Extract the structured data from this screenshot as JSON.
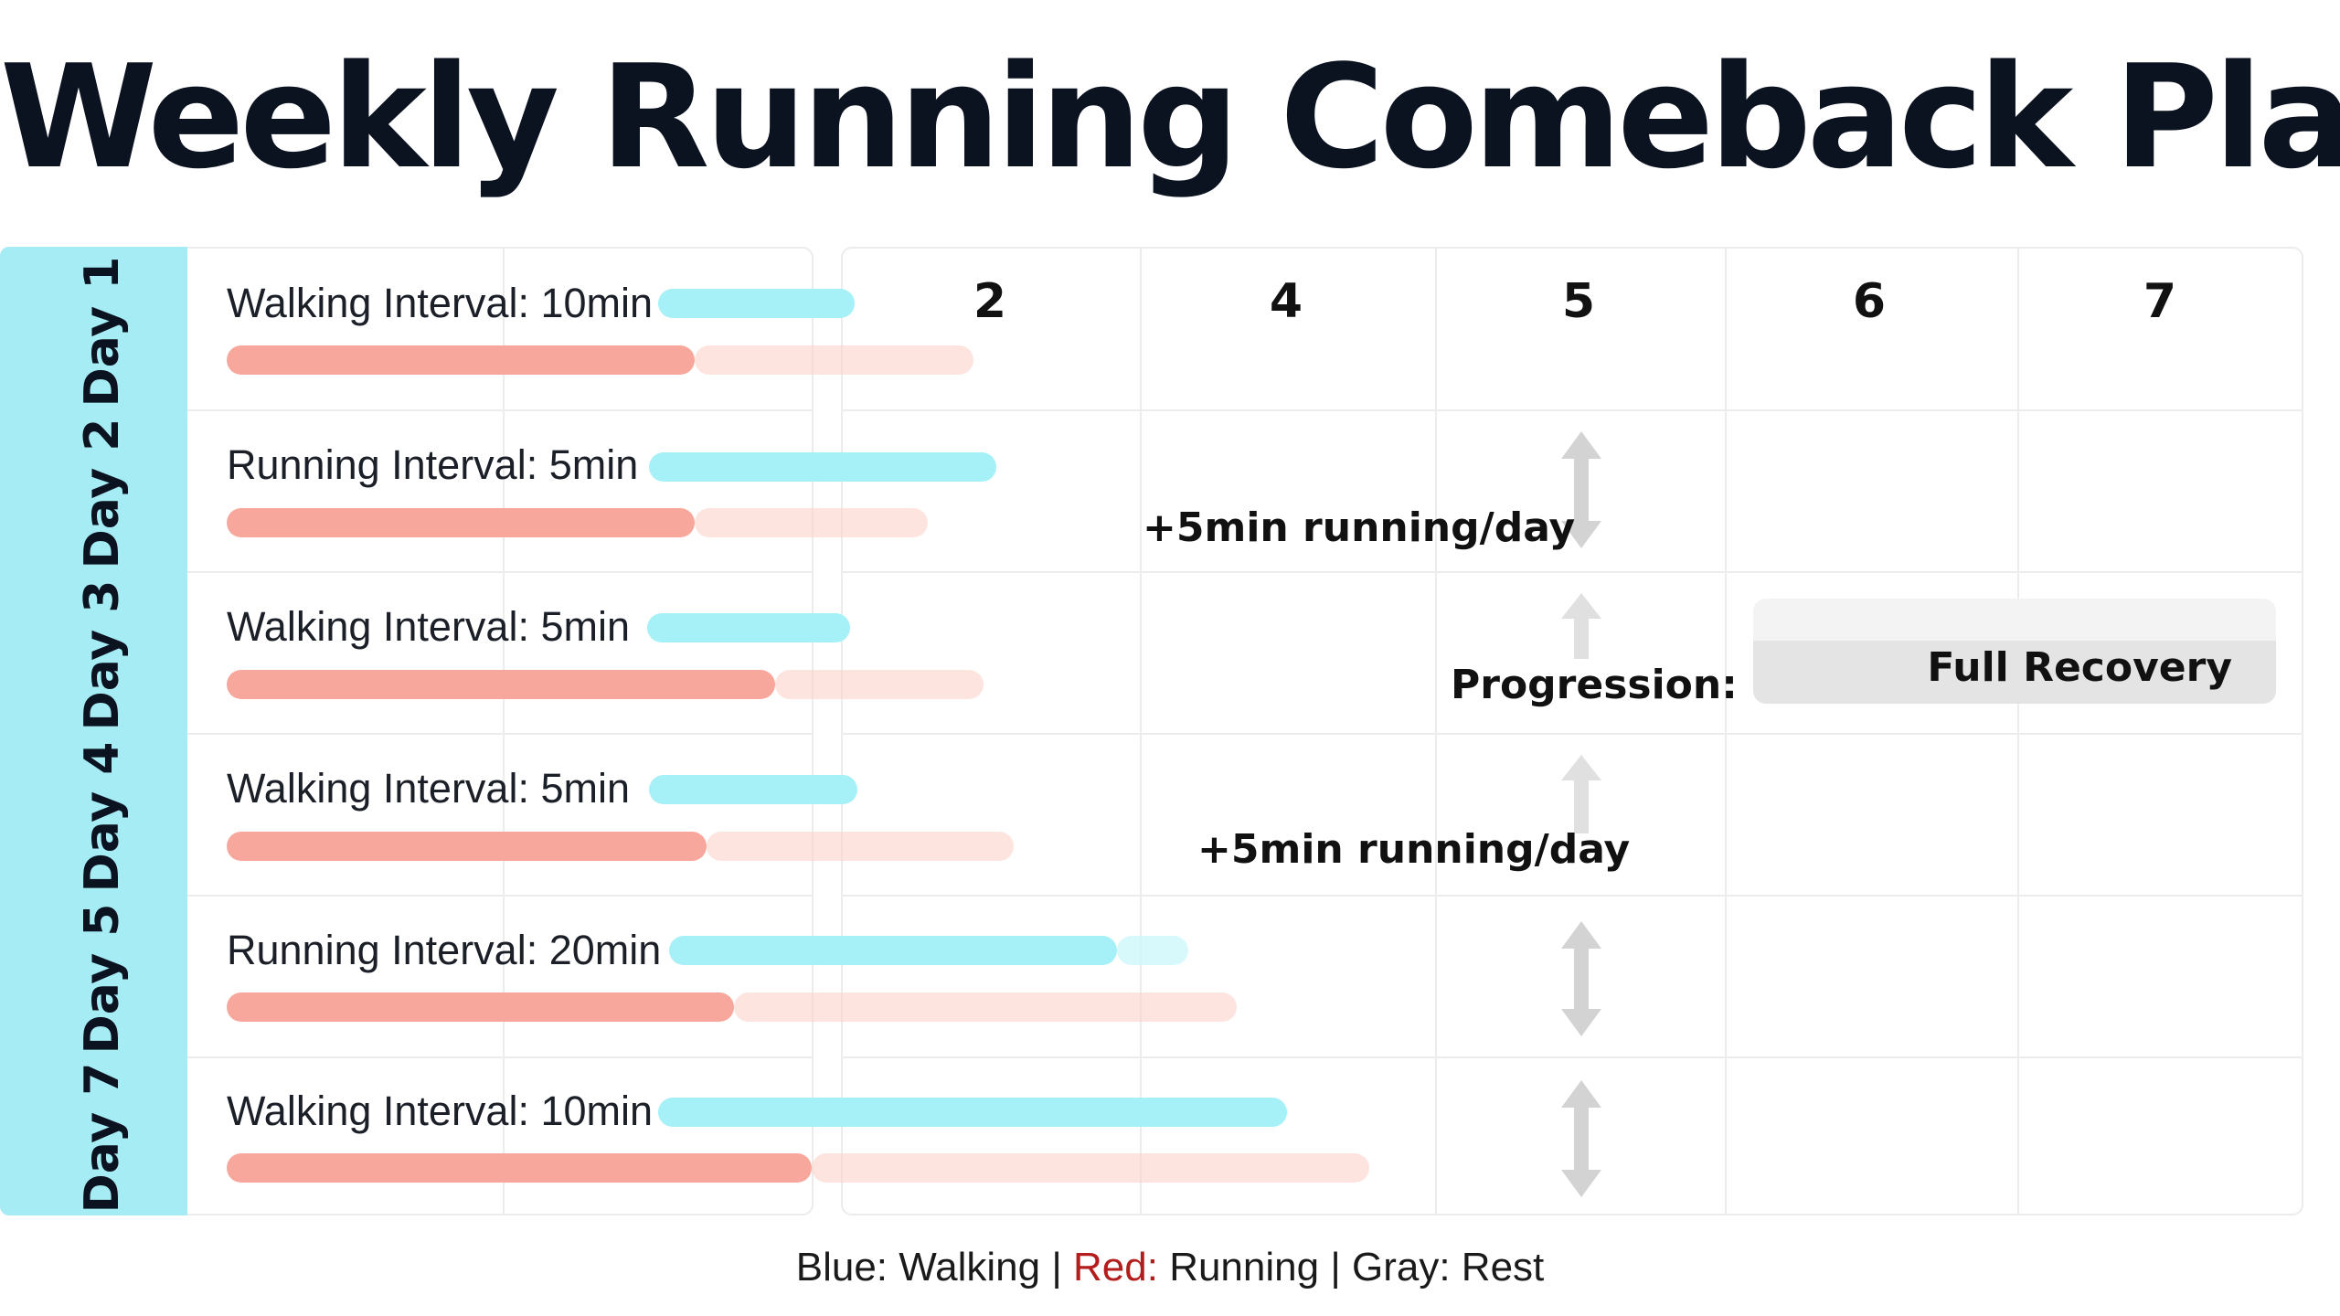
{
  "title": "Weekly Running Comeback Plan",
  "chart_data": {
    "type": "bar",
    "rows": [
      {
        "day": "Day 1",
        "label": "Walking Interval: 10min"
      },
      {
        "day": "Day 2",
        "label": "Running Interval: 5min"
      },
      {
        "day": "Day 3",
        "label": "Walking Interval: 5min"
      },
      {
        "day": "Day 4",
        "label": "Walking Interval: 5min"
      },
      {
        "day": "Day 5",
        "label": "Running Interval: 20min"
      },
      {
        "day": "Day 7",
        "label": "Walking Interval: 10min"
      }
    ],
    "columns": [
      "2",
      "4",
      "5",
      "6",
      "7"
    ],
    "annotations": {
      "running_1": "+5min running/day",
      "progression": "Progression:",
      "running_2": "+5min running/day",
      "recovery": "Full Recovery"
    },
    "legend": {
      "blue": "Blue: Walking",
      "sep1": "|",
      "red_key": "Red:",
      "red_val": "Running",
      "sep2": "|",
      "gray": "Gray: Rest"
    },
    "colors": {
      "walking": "#a6f0f7",
      "running": "#f7a79b",
      "rest": "#e4e4e4",
      "day_band": "#a6ecf4",
      "legend_red": "#b31d1d"
    }
  }
}
